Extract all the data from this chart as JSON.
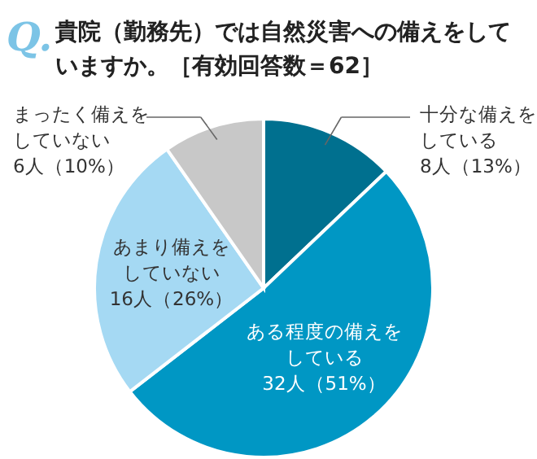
{
  "chart_data": {
    "type": "pie",
    "title": "貴院（勤務先）では自然災害への備えをしていますか。［有効回答数＝62］",
    "annotations": [
      "Q."
    ],
    "categories": [
      "十分な備えをしている",
      "ある程度の備えをしている",
      "あまり備えをしていない",
      "まったく備えをしていない"
    ],
    "values": [
      8,
      32,
      16,
      6
    ],
    "value_labels": [
      "8人（13%）",
      "32人（51%）",
      "16人（26%）",
      "6人（10%）"
    ],
    "colors": [
      "#00708f",
      "#0097c4",
      "#a5d9f3",
      "#c8c8c8"
    ]
  }
}
